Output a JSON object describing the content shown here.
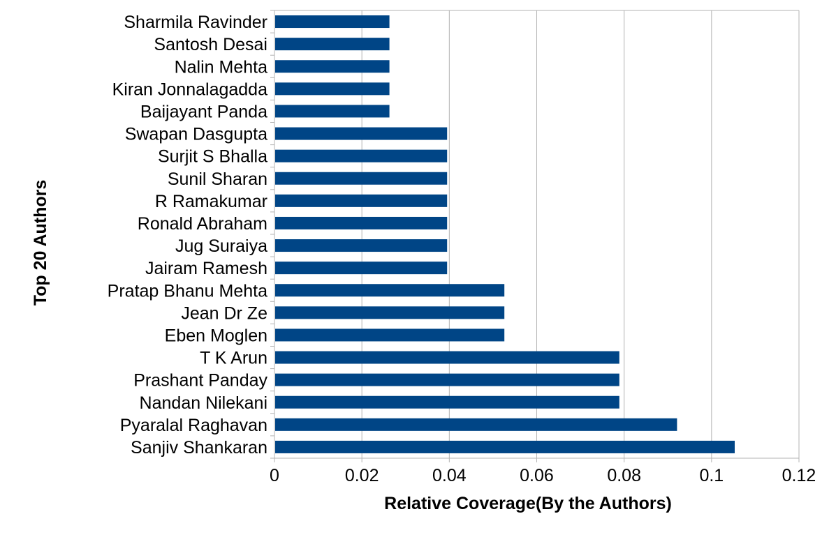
{
  "colors": {
    "bar": "#004586",
    "grid": "#b3b3b3",
    "text": "#000000",
    "background": "#ffffff"
  },
  "chart_data": {
    "type": "bar",
    "orientation": "horizontal",
    "title": "",
    "xlabel": "Relative Coverage(By the Authors)",
    "ylabel": "Top 20 Authors",
    "xlim": [
      0,
      0.12
    ],
    "xticks": [
      "0",
      "0.02",
      "0.04",
      "0.06",
      "0.08",
      "0.1",
      "0.12"
    ],
    "grid": "vertical",
    "legend": "none",
    "categories": [
      "Sharmila Ravinder",
      "Santosh Desai",
      "Nalin Mehta",
      "Kiran Jonnalagadda",
      "Baijayant Panda",
      "Swapan Dasgupta",
      "Surjit S Bhalla",
      "Sunil Sharan",
      "R Ramakumar",
      "Ronald Abraham",
      "Jug Suraiya",
      "Jairam Ramesh",
      "Pratap Bhanu Mehta",
      "Jean Dr Ze",
      "Eben Moglen",
      "T K Arun",
      "Prashant Panday",
      "Nandan Nilekani",
      "Pyaralal Raghavan",
      "Sanjiv Shankaran"
    ],
    "values": [
      0.0263,
      0.0263,
      0.0263,
      0.0263,
      0.0263,
      0.0395,
      0.0395,
      0.0395,
      0.0395,
      0.0395,
      0.0395,
      0.0395,
      0.0526,
      0.0526,
      0.0526,
      0.0789,
      0.0789,
      0.0789,
      0.0921,
      0.1053
    ]
  }
}
